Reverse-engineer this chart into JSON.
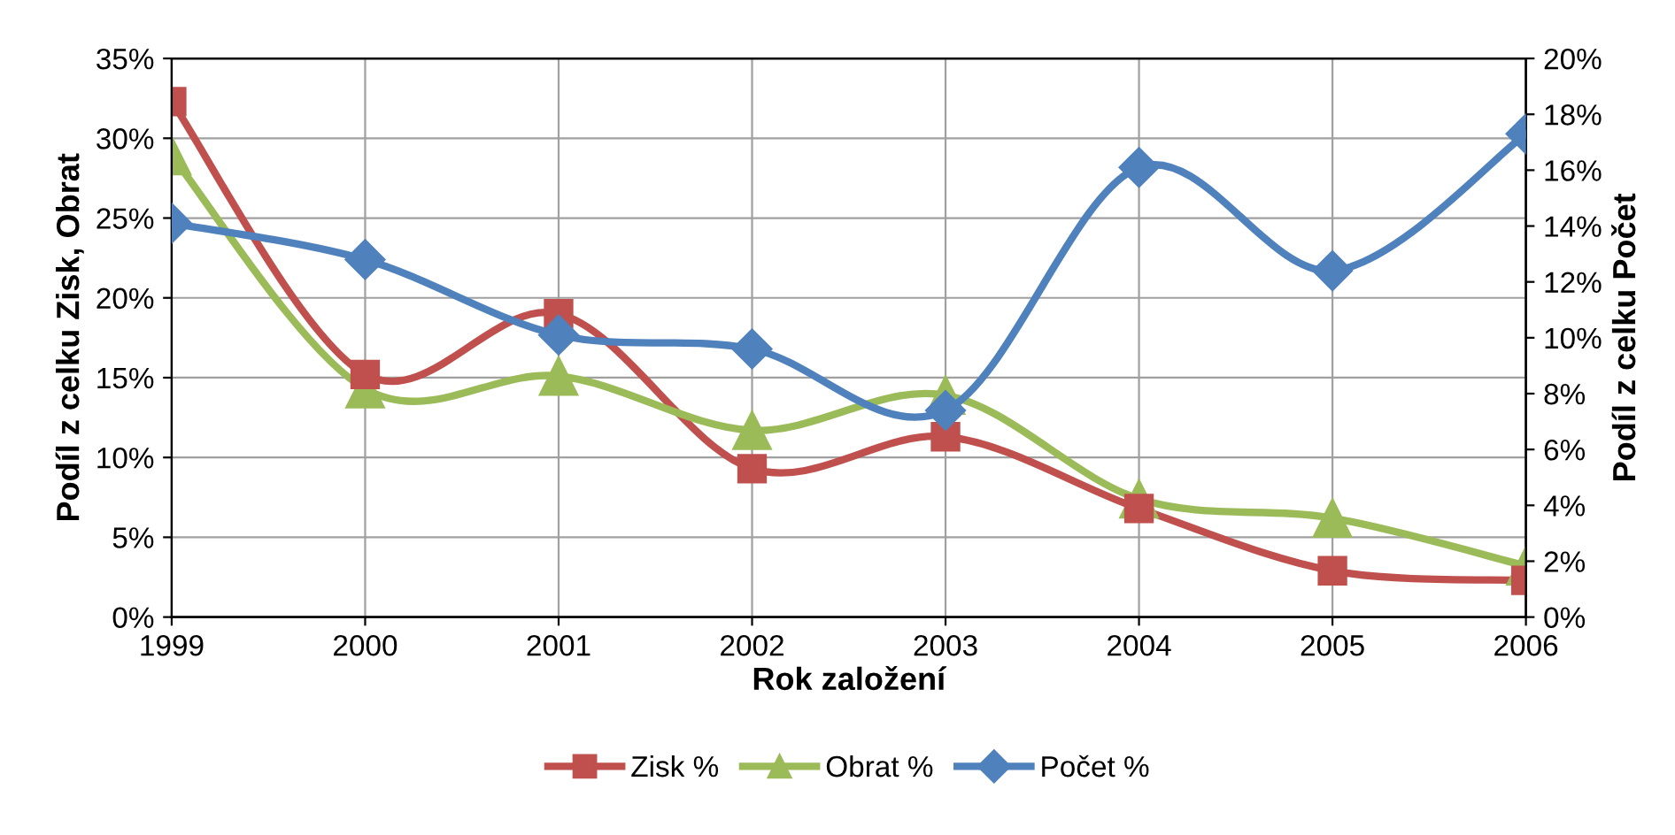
{
  "chart_data": {
    "type": "line",
    "xlabel": "Rok založení",
    "ylabel": "Podíl z celku Zisk, Obrat",
    "y2label": "Podíl z celku Počet",
    "categories": [
      "1999",
      "2000",
      "2001",
      "2002",
      "2003",
      "2004",
      "2005",
      "2006"
    ],
    "series": [
      {
        "name": "Zisk %",
        "color": "#c0504d",
        "marker": "square",
        "values": [
          32.3,
          15.2,
          19.0,
          9.3,
          11.3,
          6.8,
          2.9,
          2.3
        ]
      },
      {
        "name": "Obrat %",
        "color": "#9bbb59",
        "marker": "triangle",
        "values": [
          28.9,
          14.3,
          15.1,
          11.7,
          13.9,
          7.4,
          6.2,
          3.2
        ]
      },
      {
        "name": "Počet %",
        "color": "#4f81bd",
        "marker": "diamond",
        "axis": "y2",
        "values": [
          14.1,
          12.8,
          10.1,
          9.6,
          7.4,
          16.1,
          12.4,
          17.3
        ]
      }
    ],
    "ylim": [
      0,
      35
    ],
    "yticks": [
      {
        "value": 0,
        "label": "0%"
      },
      {
        "value": 5,
        "label": "5%"
      },
      {
        "value": 10,
        "label": "10%"
      },
      {
        "value": 15,
        "label": "15%"
      },
      {
        "value": 20,
        "label": "20%"
      },
      {
        "value": 25,
        "label": "25%"
      },
      {
        "value": 30,
        "label": "30%"
      },
      {
        "value": 35,
        "label": "35%"
      }
    ],
    "y2lim": [
      0,
      20
    ],
    "y2ticks": [
      {
        "value": 0,
        "label": "0%"
      },
      {
        "value": 2,
        "label": "2%"
      },
      {
        "value": 4,
        "label": "4%"
      },
      {
        "value": 6,
        "label": "6%"
      },
      {
        "value": 8,
        "label": "8%"
      },
      {
        "value": 10,
        "label": "10%"
      },
      {
        "value": 12,
        "label": "12%"
      },
      {
        "value": 14,
        "label": "14%"
      },
      {
        "value": 16,
        "label": "16%"
      },
      {
        "value": 18,
        "label": "18%"
      },
      {
        "value": 20,
        "label": "20%"
      }
    ],
    "grid": true,
    "legend": "bottom",
    "line_style": "solid"
  }
}
